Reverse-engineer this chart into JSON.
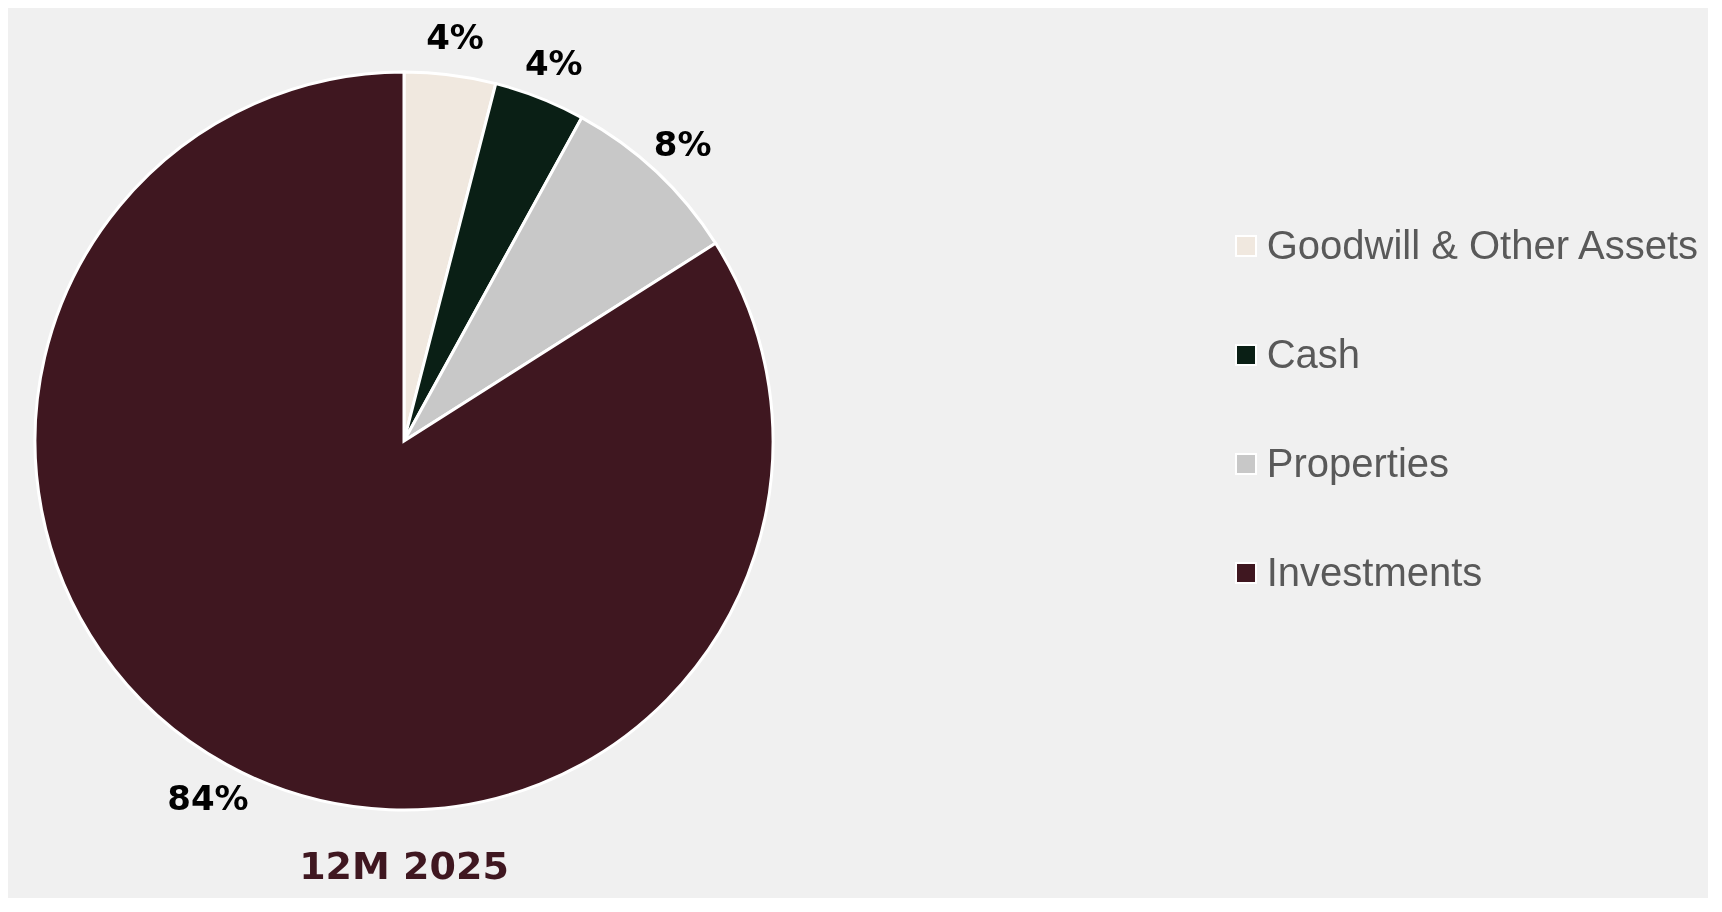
{
  "chart_data": {
    "type": "pie",
    "title": "12M 2025",
    "categories": [
      "Goodwill & Other Assets",
      "Cash",
      "Properties",
      "Investments"
    ],
    "values": [
      4,
      4,
      8,
      84
    ],
    "colors": [
      "#f0e8df",
      "#0a1f15",
      "#c8c8c8",
      "#3f1720"
    ],
    "value_labels": [
      "4%",
      "4%",
      "8%",
      "84%"
    ],
    "legend": "right"
  }
}
